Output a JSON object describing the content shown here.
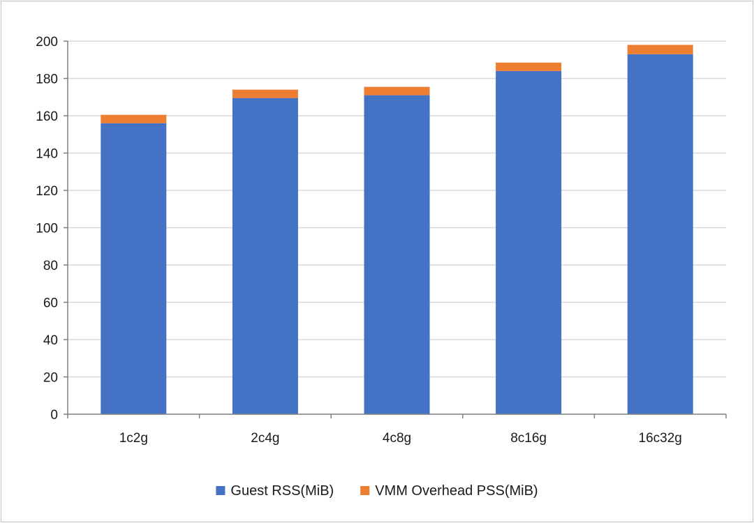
{
  "chart_data": {
    "type": "bar",
    "stacked": true,
    "title": "",
    "xlabel": "",
    "ylabel": "",
    "categories": [
      "1c2g",
      "2c4g",
      "4c8g",
      "8c16g",
      "16c32g"
    ],
    "series": [
      {
        "name": "Guest RSS(MiB)",
        "color": "#4472c4",
        "values": [
          156,
          169.5,
          171,
          184,
          193
        ]
      },
      {
        "name": "VMM Overhead PSS(MiB)",
        "color": "#ed7d31",
        "values": [
          4.5,
          4.5,
          4.5,
          4.5,
          5
        ]
      }
    ],
    "ylim": [
      0,
      200
    ],
    "yticks": [
      0,
      20,
      40,
      60,
      80,
      100,
      120,
      140,
      160,
      180,
      200
    ],
    "grid": true,
    "legend_position": "bottom"
  }
}
